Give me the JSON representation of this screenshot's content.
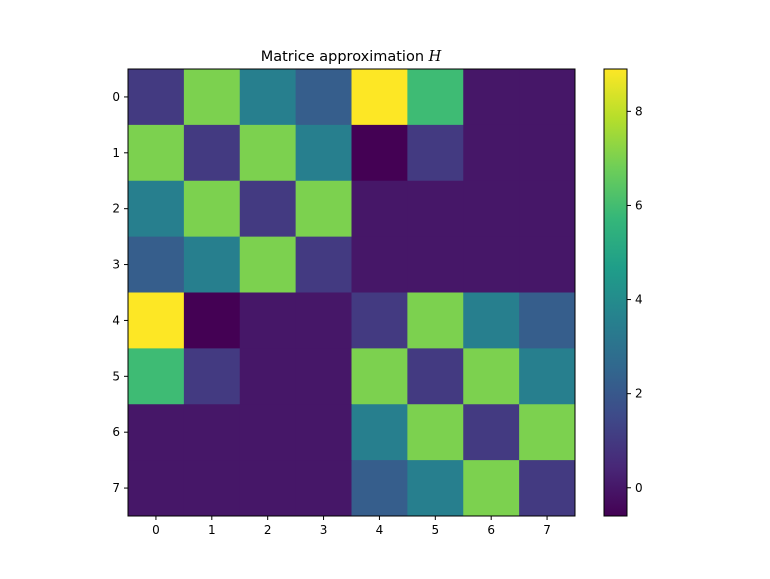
{
  "chart_data": {
    "type": "heatmap",
    "title": "Matrice approximation",
    "title_symbol": "H",
    "xlabel": "",
    "ylabel": "",
    "x_ticks": [
      "0",
      "1",
      "2",
      "3",
      "4",
      "5",
      "6",
      "7"
    ],
    "y_ticks": [
      "0",
      "1",
      "2",
      "3",
      "4",
      "5",
      "6",
      "7"
    ],
    "colormap": "viridis",
    "vmin": -0.6,
    "vmax": 8.9,
    "colorbar_ticks": [
      0,
      2,
      4,
      6,
      8
    ],
    "colorbar_tick_labels": [
      "0",
      "2",
      "4",
      "6",
      "8"
    ],
    "matrix": [
      [
        1.0,
        7.0,
        3.5,
        2.2,
        8.9,
        5.9,
        0.0,
        0.0
      ],
      [
        7.0,
        1.0,
        7.0,
        3.5,
        -0.6,
        1.0,
        0.0,
        0.0
      ],
      [
        3.5,
        7.0,
        1.0,
        7.0,
        0.0,
        0.0,
        0.0,
        0.0
      ],
      [
        2.2,
        3.5,
        7.0,
        1.0,
        0.0,
        0.0,
        0.0,
        0.0
      ],
      [
        8.9,
        -0.6,
        0.0,
        0.0,
        1.0,
        7.0,
        3.5,
        2.2
      ],
      [
        5.9,
        1.0,
        0.0,
        0.0,
        7.0,
        1.0,
        7.0,
        3.5
      ],
      [
        0.0,
        0.0,
        0.0,
        0.0,
        3.5,
        7.0,
        1.0,
        7.0
      ],
      [
        0.0,
        0.0,
        0.0,
        0.0,
        2.2,
        3.5,
        7.0,
        1.0
      ]
    ]
  }
}
